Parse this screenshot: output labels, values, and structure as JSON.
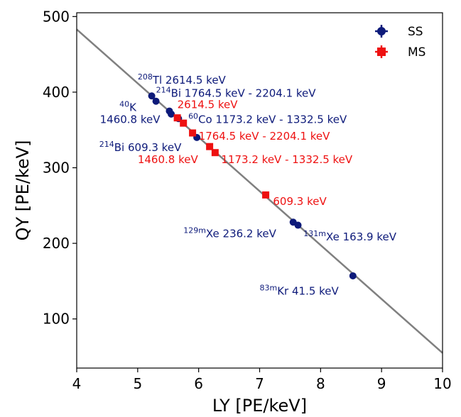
{
  "chart_data": {
    "type": "scatter",
    "xlabel": "LY [PE/keV]",
    "ylabel": "QY [PE/keV]",
    "xlim": [
      4,
      10
    ],
    "ylim": [
      35,
      505
    ],
    "xticks": [
      4,
      5,
      6,
      7,
      8,
      9,
      10
    ],
    "yticks": [
      100,
      200,
      300,
      400,
      500
    ],
    "grid": false,
    "legend_position": "top-right",
    "colors": {
      "SS": "#0d1a7a",
      "MS": "#ee1111",
      "fit": "#808080"
    },
    "fit_line": {
      "x": [
        4,
        10
      ],
      "y": [
        483,
        55
      ]
    },
    "series": [
      {
        "name": "SS",
        "marker": "circle",
        "points": [
          {
            "x": 5.23,
            "y": 395
          },
          {
            "x": 5.3,
            "y": 388
          },
          {
            "x": 5.52,
            "y": 375
          },
          {
            "x": 5.55,
            "y": 371
          },
          {
            "x": 5.67,
            "y": 365
          },
          {
            "x": 5.97,
            "y": 340
          },
          {
            "x": 7.55,
            "y": 228
          },
          {
            "x": 7.63,
            "y": 224
          },
          {
            "x": 8.53,
            "y": 157
          }
        ]
      },
      {
        "name": "MS",
        "marker": "square",
        "points": [
          {
            "x": 5.65,
            "y": 366
          },
          {
            "x": 5.75,
            "y": 359
          },
          {
            "x": 5.9,
            "y": 346
          },
          {
            "x": 6.18,
            "y": 328
          },
          {
            "x": 6.27,
            "y": 320
          },
          {
            "x": 7.1,
            "y": 264
          }
        ]
      }
    ],
    "annotations": [
      {
        "sup": "208",
        "text": "Tl 2614.5 keV",
        "series": "SS",
        "x": 5.0,
        "y": 411
      },
      {
        "sup": "214",
        "text": "Bi 1764.5 keV - 2204.1 keV",
        "series": "SS",
        "x": 5.3,
        "y": 394
      },
      {
        "sup": "40",
        "text": "K",
        "series": "SS",
        "x": 4.7,
        "y": 375
      },
      {
        "sup": "",
        "text": "2614.5 keV",
        "series": "MS",
        "x": 5.65,
        "y": 379
      },
      {
        "sup": "",
        "text": "1460.8 keV",
        "series": "SS",
        "x": 4.38,
        "y": 359
      },
      {
        "sup": "60",
        "text": "Co 1173.2 keV - 1332.5 keV",
        "series": "SS",
        "x": 5.83,
        "y": 359
      },
      {
        "sup": "",
        "text": "1764.5 keV - 2204.1 keV",
        "series": "MS",
        "x": 6.0,
        "y": 337
      },
      {
        "sup": "214",
        "text": "Bi 609.3 keV",
        "series": "SS",
        "x": 4.37,
        "y": 322
      },
      {
        "sup": "",
        "text": "1460.8 keV",
        "series": "MS",
        "x": 5.0,
        "y": 306
      },
      {
        "sup": "",
        "text": "1173.2 keV - 1332.5 keV",
        "series": "MS",
        "x": 6.37,
        "y": 306
      },
      {
        "sup": "",
        "text": "609.3 keV",
        "series": "MS",
        "x": 7.22,
        "y": 251
      },
      {
        "sup": "129m",
        "text": "Xe 236.2 keV",
        "series": "SS",
        "x": 5.75,
        "y": 208
      },
      {
        "sup": "131m",
        "text": "Xe 163.9 keV",
        "series": "SS",
        "x": 7.72,
        "y": 204
      },
      {
        "sup": "83m",
        "text": "Kr  41.5 keV",
        "series": "SS",
        "x": 7.0,
        "y": 132
      }
    ]
  }
}
